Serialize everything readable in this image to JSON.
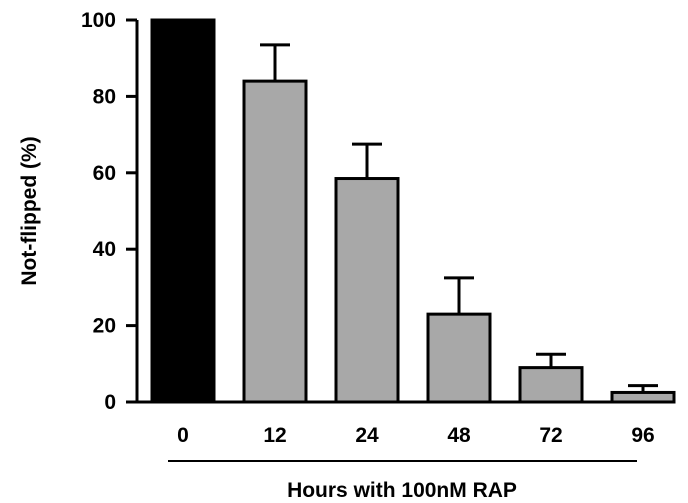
{
  "chart_data": {
    "type": "bar",
    "categories": [
      "0",
      "12",
      "24",
      "48",
      "72",
      "96"
    ],
    "values": [
      100,
      84,
      58.5,
      23,
      9,
      2.5
    ],
    "error_upper": [
      100,
      93.5,
      67.5,
      32.5,
      12.5,
      4.3
    ],
    "colors": [
      "#000000",
      "#a8a8a8",
      "#a8a8a8",
      "#a8a8a8",
      "#a8a8a8",
      "#a8a8a8"
    ],
    "title": "",
    "xlabel": "Hours with 100nM RAP",
    "ylabel": "Not-flipped (%)",
    "ylim": [
      0,
      100
    ],
    "yticks": [
      "0",
      "20",
      "40",
      "60",
      "80",
      "100"
    ],
    "grid": false
  }
}
